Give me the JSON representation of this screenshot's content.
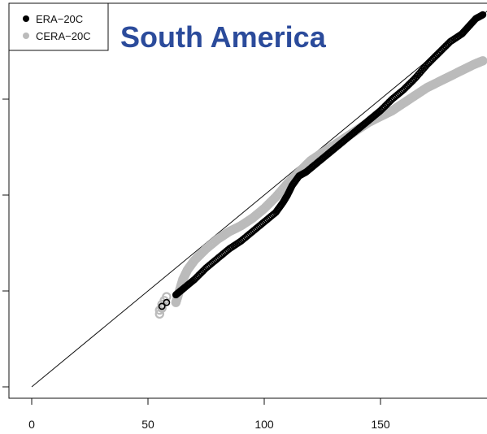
{
  "chart_data": {
    "type": "scatter",
    "title": "South America",
    "xlabel": "",
    "ylabel": "",
    "xlim": [
      -10,
      196
    ],
    "ylim": [
      -10,
      196
    ],
    "x_ticks": [
      0,
      50,
      100,
      150
    ],
    "y_ticks": [
      0,
      50,
      100,
      150
    ],
    "grid": false,
    "legend_position": "top-left",
    "reference_line": {
      "from": [
        0,
        0
      ],
      "to": [
        196,
        196
      ],
      "color": "#111111"
    },
    "series": [
      {
        "name": "ERA−20C",
        "marker": "open-circle",
        "color": "#000000",
        "points": [
          [
            56,
            42
          ],
          [
            58,
            44
          ],
          [
            62,
            48
          ],
          [
            64,
            50
          ],
          [
            66,
            52
          ],
          [
            70,
            56
          ],
          [
            75,
            62
          ],
          [
            80,
            67
          ],
          [
            85,
            72
          ],
          [
            90,
            76
          ],
          [
            95,
            81
          ],
          [
            100,
            86
          ],
          [
            105,
            91
          ],
          [
            108,
            96
          ],
          [
            110,
            100
          ],
          [
            112,
            105
          ],
          [
            115,
            110
          ],
          [
            118,
            112
          ],
          [
            122,
            116
          ],
          [
            126,
            120
          ],
          [
            130,
            124
          ],
          [
            134,
            128
          ],
          [
            138,
            132
          ],
          [
            142,
            136
          ],
          [
            146,
            140
          ],
          [
            150,
            144
          ],
          [
            155,
            150
          ],
          [
            160,
            155
          ],
          [
            165,
            161
          ],
          [
            170,
            168
          ],
          [
            175,
            174
          ],
          [
            180,
            180
          ],
          [
            185,
            184
          ],
          [
            188,
            188
          ],
          [
            191,
            192
          ],
          [
            194,
            194
          ]
        ]
      },
      {
        "name": "CERA−20C",
        "marker": "open-circle",
        "color": "#bbbbbb",
        "points": [
          [
            55,
            38
          ],
          [
            55,
            40
          ],
          [
            56,
            41
          ],
          [
            56,
            43
          ],
          [
            57,
            45
          ],
          [
            58,
            47
          ],
          [
            62,
            44
          ],
          [
            63,
            48
          ],
          [
            65,
            56
          ],
          [
            67,
            61
          ],
          [
            70,
            66
          ],
          [
            75,
            72
          ],
          [
            80,
            77
          ],
          [
            85,
            81
          ],
          [
            90,
            84
          ],
          [
            95,
            88
          ],
          [
            100,
            93
          ],
          [
            105,
            99
          ],
          [
            110,
            106
          ],
          [
            115,
            112
          ],
          [
            120,
            118
          ],
          [
            125,
            122
          ],
          [
            130,
            126
          ],
          [
            135,
            130
          ],
          [
            140,
            134
          ],
          [
            145,
            138
          ],
          [
            150,
            141
          ],
          [
            155,
            144
          ],
          [
            160,
            148
          ],
          [
            165,
            152
          ],
          [
            170,
            156
          ],
          [
            175,
            159
          ],
          [
            180,
            162
          ],
          [
            185,
            165
          ],
          [
            190,
            168
          ],
          [
            194,
            170
          ]
        ]
      }
    ]
  },
  "colors": {
    "title": "#2b4b9b",
    "era": "#000000",
    "cera": "#bbbbbb",
    "axis": "#111111"
  }
}
